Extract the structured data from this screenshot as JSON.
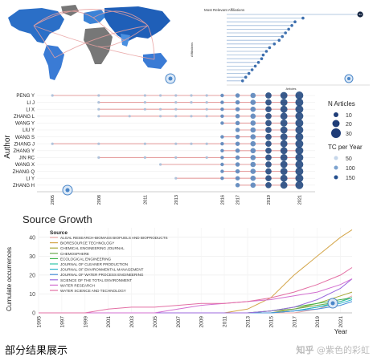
{
  "affiliations": {
    "title": "Most Relevant Affiliations",
    "axis_label": "Affiliations",
    "xlabel": "Articles",
    "labels": [
      "",
      "",
      "",
      "",
      "",
      "",
      "",
      "",
      "",
      "",
      "",
      "",
      "",
      "",
      "",
      "",
      "",
      "",
      ""
    ],
    "values": [
      84,
      48,
      43,
      41,
      39,
      37,
      35,
      33,
      30,
      27,
      25,
      23,
      22,
      20,
      18,
      16,
      14,
      12,
      10
    ],
    "xmax": 90
  },
  "authors": {
    "ylabel": "Author",
    "names": [
      "PENG Y",
      "LI J",
      "LI X",
      "ZHANG L",
      "WANG Y",
      "LIU Y",
      "WANG S",
      "ZHANG J",
      "ZHANG Y",
      "JIN RC",
      "WANG X",
      "ZHANG Q",
      "LI Y",
      "ZHANG H"
    ],
    "year_ticks": [
      "2005",
      "2008",
      "2011",
      "2013",
      "2016",
      "2017",
      "2019",
      "2021"
    ],
    "legend_n_title": "N Articles",
    "legend_n": [
      "10",
      "20",
      "30"
    ],
    "legend_tc_title": "TC per Year",
    "legend_tc": [
      "50",
      "100",
      "150"
    ]
  },
  "chart_data": {
    "type": "line",
    "title": "Source Growth",
    "xlabel": "Year",
    "ylabel": "Cumulate occurrences",
    "legend_title": "Source",
    "x": [
      1995,
      1997,
      1999,
      2001,
      2003,
      2005,
      2007,
      2009,
      2011,
      2013,
      2015,
      2017,
      2019,
      2021,
      2022
    ],
    "xticks": [
      "1995",
      "1997",
      "1999",
      "2001",
      "2003",
      "2005",
      "2007",
      "2009",
      "2011",
      "2013",
      "2015",
      "2017",
      "2019",
      "2021"
    ],
    "yticks": [
      "0",
      "10",
      "20",
      "30",
      "40"
    ],
    "ylim": [
      0,
      45
    ],
    "series": [
      {
        "name": "ALGAL RESEARCH-BIOMASS BIOFUELS AND BIOPRODUCTS",
        "color": "#e7a3a3",
        "values": [
          0,
          0,
          0,
          0,
          0,
          0,
          0,
          0,
          0,
          0,
          0,
          0,
          2,
          6,
          9
        ]
      },
      {
        "name": "BIORESOURCE TECHNOLOGY",
        "color": "#d4a64a",
        "values": [
          0,
          0,
          0,
          0,
          0,
          0,
          0,
          0,
          0,
          2,
          8,
          20,
          30,
          40,
          44
        ]
      },
      {
        "name": "CHEMICAL ENGINEERING JOURNAL",
        "color": "#a9a93a",
        "values": [
          0,
          0,
          0,
          0,
          0,
          0,
          0,
          0,
          0,
          0,
          0,
          2,
          5,
          9,
          11
        ]
      },
      {
        "name": "CHEMOSPHERE",
        "color": "#6aa84f",
        "values": [
          0,
          0,
          0,
          0,
          0,
          0,
          0,
          0,
          0,
          0,
          1,
          2,
          4,
          6,
          8
        ]
      },
      {
        "name": "ECOLOGICAL ENGINEERING",
        "color": "#3cb44b",
        "values": [
          0,
          0,
          0,
          0,
          0,
          0,
          0,
          0,
          0,
          0,
          1,
          3,
          5,
          7,
          8
        ]
      },
      {
        "name": "JOURNAL OF CLEANER PRODUCTION",
        "color": "#2ec4a8",
        "values": [
          0,
          0,
          0,
          0,
          0,
          0,
          0,
          0,
          0,
          0,
          0,
          1,
          3,
          6,
          8
        ]
      },
      {
        "name": "JOURNAL OF ENVIRONMENTAL MANAGEMENT",
        "color": "#2bb3cc",
        "values": [
          0,
          0,
          0,
          0,
          0,
          0,
          0,
          0,
          0,
          0,
          0,
          1,
          3,
          5,
          7
        ]
      },
      {
        "name": "JOURNAL OF WATER PROCESS ENGINEERING",
        "color": "#4a90d9",
        "values": [
          0,
          0,
          0,
          0,
          0,
          0,
          0,
          0,
          0,
          0,
          0,
          1,
          2,
          4,
          6
        ]
      },
      {
        "name": "SCIENCE OF THE TOTAL ENVIRONMENT",
        "color": "#9c6ade",
        "values": [
          0,
          0,
          0,
          0,
          0,
          0,
          0,
          0,
          0,
          0,
          1,
          3,
          7,
          13,
          18
        ]
      },
      {
        "name": "WATER RESEARCH",
        "color": "#d36fd0",
        "values": [
          0,
          0,
          0,
          0,
          0,
          0,
          2,
          4,
          5,
          6,
          7,
          9,
          11,
          15,
          18
        ]
      },
      {
        "name": "WATER SCIENCE AND TECHNOLOGY",
        "color": "#e36fa4",
        "values": [
          0,
          0,
          0,
          2,
          3,
          3,
          4,
          5,
          5,
          6,
          8,
          11,
          15,
          20,
          24
        ]
      }
    ]
  },
  "caption": "部分结果展示",
  "watermark": {
    "site": "知乎",
    "author": "@紫色的彩虹"
  }
}
